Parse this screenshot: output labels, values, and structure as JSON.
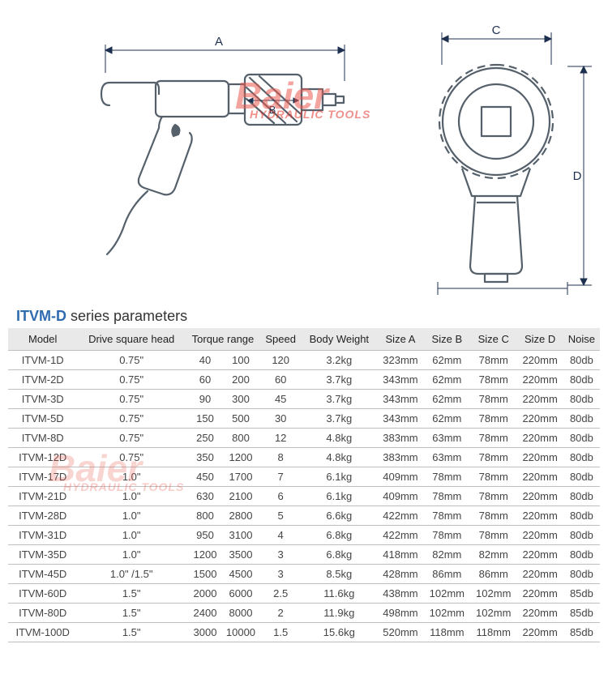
{
  "watermark": {
    "line1": "Baier",
    "line2": "HYDRAULIC TOOLS",
    "color1": "#ea5a4f",
    "color2": "#e4352b"
  },
  "diagram": {
    "labels": {
      "A": "A",
      "B": "B",
      "C": "C",
      "D": "D"
    },
    "stroke": "#55606b",
    "dim_stroke": "#1e3050"
  },
  "title": {
    "series": "ITVM-D",
    "rest": "series parameters",
    "series_color": "#2e6caf"
  },
  "table": {
    "columns": [
      "Model",
      "Drive square head",
      "Torque range",
      "Speed",
      "Body Weight",
      "Size A",
      "Size B",
      "Size C",
      "Size D",
      "Noise"
    ],
    "rows": [
      {
        "model": "ITVM-1D",
        "drive": "0.75\"",
        "tr_lo": "40",
        "tr_hi": "100",
        "speed": "120",
        "weight": "3.2kg",
        "A": "323mm",
        "B": "62mm",
        "C": "78mm",
        "D": "220mm",
        "noise": "80db"
      },
      {
        "model": "ITVM-2D",
        "drive": "0.75\"",
        "tr_lo": "60",
        "tr_hi": "200",
        "speed": "60",
        "weight": "3.7kg",
        "A": "343mm",
        "B": "62mm",
        "C": "78mm",
        "D": "220mm",
        "noise": "80db"
      },
      {
        "model": "ITVM-3D",
        "drive": "0.75\"",
        "tr_lo": "90",
        "tr_hi": "300",
        "speed": "45",
        "weight": "3.7kg",
        "A": "343mm",
        "B": "62mm",
        "C": "78mm",
        "D": "220mm",
        "noise": "80db"
      },
      {
        "model": "ITVM-5D",
        "drive": "0.75\"",
        "tr_lo": "150",
        "tr_hi": "500",
        "speed": "30",
        "weight": "3.7kg",
        "A": "343mm",
        "B": "62mm",
        "C": "78mm",
        "D": "220mm",
        "noise": "80db"
      },
      {
        "model": "ITVM-8D",
        "drive": "0.75\"",
        "tr_lo": "250",
        "tr_hi": "800",
        "speed": "12",
        "weight": "4.8kg",
        "A": "383mm",
        "B": "63mm",
        "C": "78mm",
        "D": "220mm",
        "noise": "80db"
      },
      {
        "model": "ITVM-12D",
        "drive": "0.75\"",
        "tr_lo": "350",
        "tr_hi": "1200",
        "speed": "8",
        "weight": "4.8kg",
        "A": "383mm",
        "B": "63mm",
        "C": "78mm",
        "D": "220mm",
        "noise": "80db"
      },
      {
        "model": "ITVM-17D",
        "drive": "1.0\"",
        "tr_lo": "450",
        "tr_hi": "1700",
        "speed": "7",
        "weight": "6.1kg",
        "A": "409mm",
        "B": "78mm",
        "C": "78mm",
        "D": "220mm",
        "noise": "80db"
      },
      {
        "model": "ITVM-21D",
        "drive": "1.0\"",
        "tr_lo": "630",
        "tr_hi": "2100",
        "speed": "6",
        "weight": "6.1kg",
        "A": "409mm",
        "B": "78mm",
        "C": "78mm",
        "D": "220mm",
        "noise": "80db"
      },
      {
        "model": "ITVM-28D",
        "drive": "1.0\"",
        "tr_lo": "800",
        "tr_hi": "2800",
        "speed": "5",
        "weight": "6.6kg",
        "A": "422mm",
        "B": "78mm",
        "C": "78mm",
        "D": "220mm",
        "noise": "80db"
      },
      {
        "model": "ITVM-31D",
        "drive": "1.0\"",
        "tr_lo": "950",
        "tr_hi": "3100",
        "speed": "4",
        "weight": "6.8kg",
        "A": "422mm",
        "B": "78mm",
        "C": "78mm",
        "D": "220mm",
        "noise": "80db"
      },
      {
        "model": "ITVM-35D",
        "drive": "1.0\"",
        "tr_lo": "1200",
        "tr_hi": "3500",
        "speed": "3",
        "weight": "6.8kg",
        "A": "418mm",
        "B": "82mm",
        "C": "82mm",
        "D": "220mm",
        "noise": "80db"
      },
      {
        "model": "ITVM-45D",
        "drive": "1.0\" /1.5\"",
        "tr_lo": "1500",
        "tr_hi": "4500",
        "speed": "3",
        "weight": "8.5kg",
        "A": "428mm",
        "B": "86mm",
        "C": "86mm",
        "D": "220mm",
        "noise": "80db"
      },
      {
        "model": "ITVM-60D",
        "drive": "1.5\"",
        "tr_lo": "2000",
        "tr_hi": "6000",
        "speed": "2.5",
        "weight": "11.6kg",
        "A": "438mm",
        "B": "102mm",
        "C": "102mm",
        "D": "220mm",
        "noise": "85db"
      },
      {
        "model": "ITVM-80D",
        "drive": "1.5\"",
        "tr_lo": "2400",
        "tr_hi": "8000",
        "speed": "2",
        "weight": "11.9kg",
        "A": "498mm",
        "B": "102mm",
        "C": "102mm",
        "D": "220mm",
        "noise": "85db"
      },
      {
        "model": "ITVM-100D",
        "drive": "1.5\"",
        "tr_lo": "3000",
        "tr_hi": "10000",
        "speed": "1.5",
        "weight": "15.6kg",
        "A": "520mm",
        "B": "118mm",
        "C": "118mm",
        "D": "220mm",
        "noise": "85db"
      }
    ],
    "header_bg": "#e9e9e9",
    "border_color": "#bfbfbf"
  }
}
